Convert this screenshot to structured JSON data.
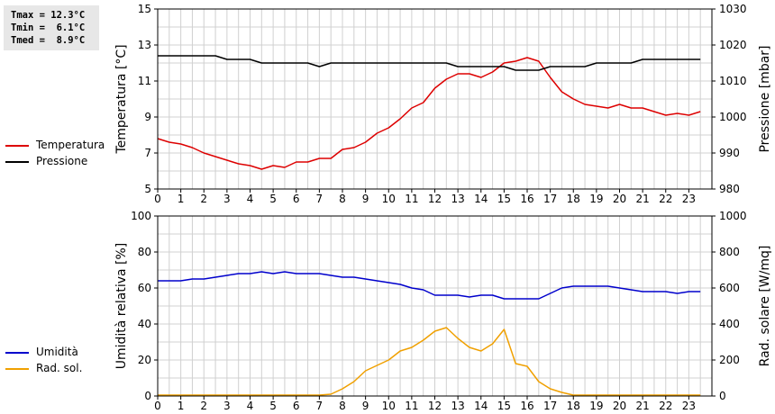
{
  "stats": {
    "tmax": "Tmax = 12.3°C",
    "tmin": "Tmin =  6.1°C",
    "tmed": "Tmed =  8.9°C"
  },
  "colors": {
    "temperature": "#dd0000",
    "pressure": "#000000",
    "humidity": "#0000cc",
    "radiation": "#f0a000",
    "grid": "#d0d0d0",
    "stats_bg": "#e7e7e7"
  },
  "legend_top": [
    {
      "label": "Temperatura",
      "color": "#dd0000"
    },
    {
      "label": "Pressione",
      "color": "#000000"
    }
  ],
  "legend_bottom": [
    {
      "label": "Umidità",
      "color": "#0000cc"
    },
    {
      "label": "Rad. sol.",
      "color": "#f0a000"
    }
  ],
  "chart_data": [
    {
      "type": "line",
      "title": "",
      "xlabel": "",
      "ylabel": "Temperatura [°C]",
      "y2label": "Pressione [mbar]",
      "xlim": [
        0,
        24
      ],
      "ylim": [
        5,
        15
      ],
      "y2lim": [
        980,
        1030
      ],
      "xticks": [
        0,
        1,
        2,
        3,
        4,
        5,
        6,
        7,
        8,
        9,
        10,
        11,
        12,
        13,
        14,
        15,
        16,
        17,
        18,
        19,
        20,
        21,
        22,
        23
      ],
      "yticks": [
        5,
        7,
        9,
        11,
        13,
        15
      ],
      "y2ticks": [
        980,
        990,
        1000,
        1010,
        1020,
        1030
      ],
      "grid": true,
      "legend_position": "left-outside",
      "series": [
        {
          "name": "Temperatura",
          "axis": "left",
          "x": [
            0,
            0.5,
            1,
            1.5,
            2,
            2.5,
            3,
            3.5,
            4,
            4.5,
            5,
            5.5,
            6,
            6.5,
            7,
            7.5,
            8,
            8.5,
            9,
            9.5,
            10,
            10.5,
            11,
            11.5,
            12,
            12.5,
            13,
            13.5,
            14,
            14.5,
            15,
            15.5,
            16,
            16.5,
            17,
            17.5,
            18,
            18.5,
            19,
            19.5,
            20,
            20.5,
            21,
            21.5,
            22,
            22.5,
            23,
            23.5
          ],
          "y": [
            7.8,
            7.6,
            7.5,
            7.3,
            7.0,
            6.8,
            6.6,
            6.4,
            6.3,
            6.1,
            6.3,
            6.2,
            6.5,
            6.5,
            6.7,
            6.7,
            7.2,
            7.3,
            7.6,
            8.1,
            8.4,
            8.9,
            9.5,
            9.8,
            10.6,
            11.1,
            11.4,
            11.4,
            11.2,
            11.5,
            12.0,
            12.1,
            12.3,
            12.1,
            11.2,
            10.4,
            10.0,
            9.7,
            9.6,
            9.5,
            9.7,
            9.5,
            9.5,
            9.3,
            9.1,
            9.2,
            9.1,
            9.3
          ]
        },
        {
          "name": "Pressione",
          "axis": "right",
          "x": [
            0,
            0.5,
            1,
            1.5,
            2,
            2.5,
            3,
            3.5,
            4,
            4.5,
            5,
            5.5,
            6,
            6.5,
            7,
            7.5,
            8,
            8.5,
            9,
            9.5,
            10,
            10.5,
            11,
            11.5,
            12,
            12.5,
            13,
            13.5,
            14,
            14.5,
            15,
            15.5,
            16,
            16.5,
            17,
            17.5,
            18,
            18.5,
            19,
            19.5,
            20,
            20.5,
            21,
            21.5,
            22,
            22.5,
            23,
            23.5
          ],
          "y": [
            1017,
            1017,
            1017,
            1017,
            1017,
            1017,
            1016,
            1016,
            1016,
            1015,
            1015,
            1015,
            1015,
            1015,
            1014,
            1015,
            1015,
            1015,
            1015,
            1015,
            1015,
            1015,
            1015,
            1015,
            1015,
            1015,
            1014,
            1014,
            1014,
            1014,
            1014,
            1013,
            1013,
            1013,
            1014,
            1014,
            1014,
            1014,
            1015,
            1015,
            1015,
            1015,
            1016,
            1016,
            1016,
            1016,
            1016,
            1016
          ]
        }
      ]
    },
    {
      "type": "line",
      "title": "",
      "xlabel": "",
      "ylabel": "Umidità relativa [%]",
      "y2label": "Rad. solare [W/mq]",
      "xlim": [
        0,
        24
      ],
      "ylim": [
        0,
        100
      ],
      "y2lim": [
        0,
        1000
      ],
      "xticks": [
        0,
        1,
        2,
        3,
        4,
        5,
        6,
        7,
        8,
        9,
        10,
        11,
        12,
        13,
        14,
        15,
        16,
        17,
        18,
        19,
        20,
        21,
        22,
        23
      ],
      "yticks": [
        0,
        20,
        40,
        60,
        80,
        100
      ],
      "y2ticks": [
        0,
        200,
        400,
        600,
        800,
        1000
      ],
      "grid": true,
      "legend_position": "left-outside",
      "series": [
        {
          "name": "Umidità",
          "axis": "left",
          "x": [
            0,
            0.5,
            1,
            1.5,
            2,
            2.5,
            3,
            3.5,
            4,
            4.5,
            5,
            5.5,
            6,
            6.5,
            7,
            7.5,
            8,
            8.5,
            9,
            9.5,
            10,
            10.5,
            11,
            11.5,
            12,
            12.5,
            13,
            13.5,
            14,
            14.5,
            15,
            15.5,
            16,
            16.5,
            17,
            17.5,
            18,
            18.5,
            19,
            19.5,
            20,
            20.5,
            21,
            21.5,
            22,
            22.5,
            23,
            23.5
          ],
          "y": [
            64,
            64,
            64,
            65,
            65,
            66,
            67,
            68,
            68,
            69,
            68,
            69,
            68,
            68,
            68,
            67,
            66,
            66,
            65,
            64,
            63,
            62,
            60,
            59,
            56,
            56,
            56,
            55,
            56,
            56,
            54,
            54,
            54,
            54,
            57,
            60,
            61,
            61,
            61,
            61,
            60,
            59,
            58,
            58,
            58,
            57,
            58,
            58
          ]
        },
        {
          "name": "Rad. sol.",
          "axis": "right",
          "x": [
            0,
            0.5,
            1,
            1.5,
            2,
            2.5,
            3,
            3.5,
            4,
            4.5,
            5,
            5.5,
            6,
            6.5,
            7,
            7.5,
            8,
            8.5,
            9,
            9.5,
            10,
            10.5,
            11,
            11.5,
            12,
            12.5,
            13,
            13.5,
            14,
            14.5,
            15,
            15.5,
            16,
            16.5,
            17,
            17.5,
            18,
            18.5,
            19,
            19.5,
            20,
            20.5,
            21,
            21.5,
            22,
            22.5,
            23,
            23.5
          ],
          "y": [
            5,
            5,
            5,
            5,
            5,
            5,
            5,
            5,
            5,
            5,
            5,
            5,
            5,
            5,
            5,
            10,
            40,
            80,
            140,
            170,
            200,
            250,
            270,
            310,
            360,
            380,
            320,
            270,
            250,
            290,
            370,
            180,
            165,
            80,
            40,
            20,
            5,
            5,
            5,
            5,
            5,
            5,
            5,
            5,
            5,
            5,
            5,
            5
          ]
        }
      ]
    }
  ]
}
